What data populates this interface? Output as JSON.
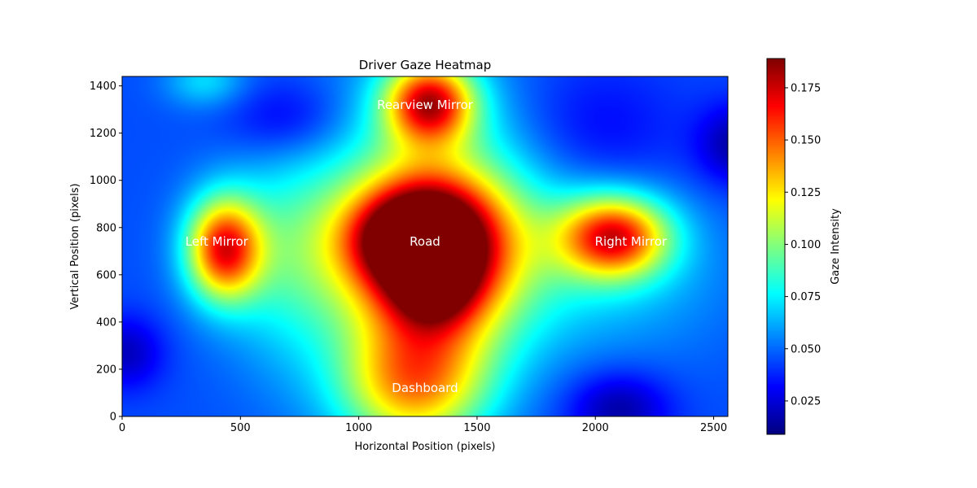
{
  "chart_data": {
    "type": "heatmap",
    "title": "Driver Gaze Heatmap",
    "xlabel": "Horizontal Position (pixels)",
    "ylabel": "Vertical Position (pixels)",
    "colorbar_label": "Gaze Intensity",
    "colormap": "jet",
    "xlim": [
      0,
      2560
    ],
    "ylim": [
      0,
      1440
    ],
    "x_ticks": [
      0,
      500,
      1000,
      1500,
      2000,
      2500
    ],
    "y_ticks": [
      0,
      200,
      400,
      600,
      800,
      1000,
      1200,
      1400
    ],
    "colorbar_range": [
      0.009,
      0.189
    ],
    "colorbar_ticks": [
      0.025,
      0.05,
      0.075,
      0.1,
      0.125,
      0.15,
      0.175
    ],
    "baseline_intensity": 0.045,
    "hotspots": [
      {
        "x": 1300,
        "y": 720,
        "sx": 210,
        "sy": 200,
        "amp": 0.14
      },
      {
        "x": 1200,
        "y": 760,
        "sx": 170,
        "sy": 120,
        "amp": 0.05
      },
      {
        "x": 1320,
        "y": 550,
        "sx": 120,
        "sy": 120,
        "amp": 0.04
      },
      {
        "x": 1300,
        "y": 1330,
        "sx": 130,
        "sy": 120,
        "amp": 0.11
      },
      {
        "x": 430,
        "y": 710,
        "sx": 110,
        "sy": 150,
        "amp": 0.11
      },
      {
        "x": 2080,
        "y": 760,
        "sx": 160,
        "sy": 120,
        "amp": 0.11
      },
      {
        "x": 1230,
        "y": 120,
        "sx": 220,
        "sy": 190,
        "amp": 0.08
      },
      {
        "x": 1280,
        "y": 950,
        "sx": 280,
        "sy": 420,
        "amp": 0.04
      },
      {
        "x": 1600,
        "y": 700,
        "sx": 320,
        "sy": 280,
        "amp": 0.035
      },
      {
        "x": 800,
        "y": 700,
        "sx": 280,
        "sy": 260,
        "amp": 0.03
      },
      {
        "x": 1300,
        "y": 350,
        "sx": 250,
        "sy": 200,
        "amp": 0.03
      },
      {
        "x": 350,
        "y": 1420,
        "sx": 120,
        "sy": 80,
        "amp": 0.025
      },
      {
        "x": 700,
        "y": 650,
        "sx": 200,
        "sy": 400,
        "amp": 0.015
      },
      {
        "x": 2200,
        "y": 600,
        "sx": 300,
        "sy": 250,
        "amp": 0.015
      }
    ],
    "coldspots": [
      {
        "x": 2600,
        "y": 1150,
        "sx": 120,
        "sy": 120,
        "amp": -0.03
      },
      {
        "x": 2100,
        "y": 30,
        "sx": 150,
        "sy": 110,
        "amp": -0.03
      },
      {
        "x": 20,
        "y": 270,
        "sx": 110,
        "sy": 110,
        "amp": -0.025
      },
      {
        "x": 700,
        "y": 1260,
        "sx": 180,
        "sy": 120,
        "amp": -0.02
      },
      {
        "x": 2000,
        "y": 1200,
        "sx": 250,
        "sy": 200,
        "amp": -0.015
      }
    ],
    "annotations": [
      {
        "text": "Rearview Mirror",
        "x": 1280,
        "y": 1320
      },
      {
        "text": "Left Mirror",
        "x": 400,
        "y": 740
      },
      {
        "text": "Road",
        "x": 1280,
        "y": 740
      },
      {
        "text": "Right Mirror",
        "x": 2150,
        "y": 740
      },
      {
        "text": "Dashboard",
        "x": 1280,
        "y": 120
      }
    ]
  }
}
